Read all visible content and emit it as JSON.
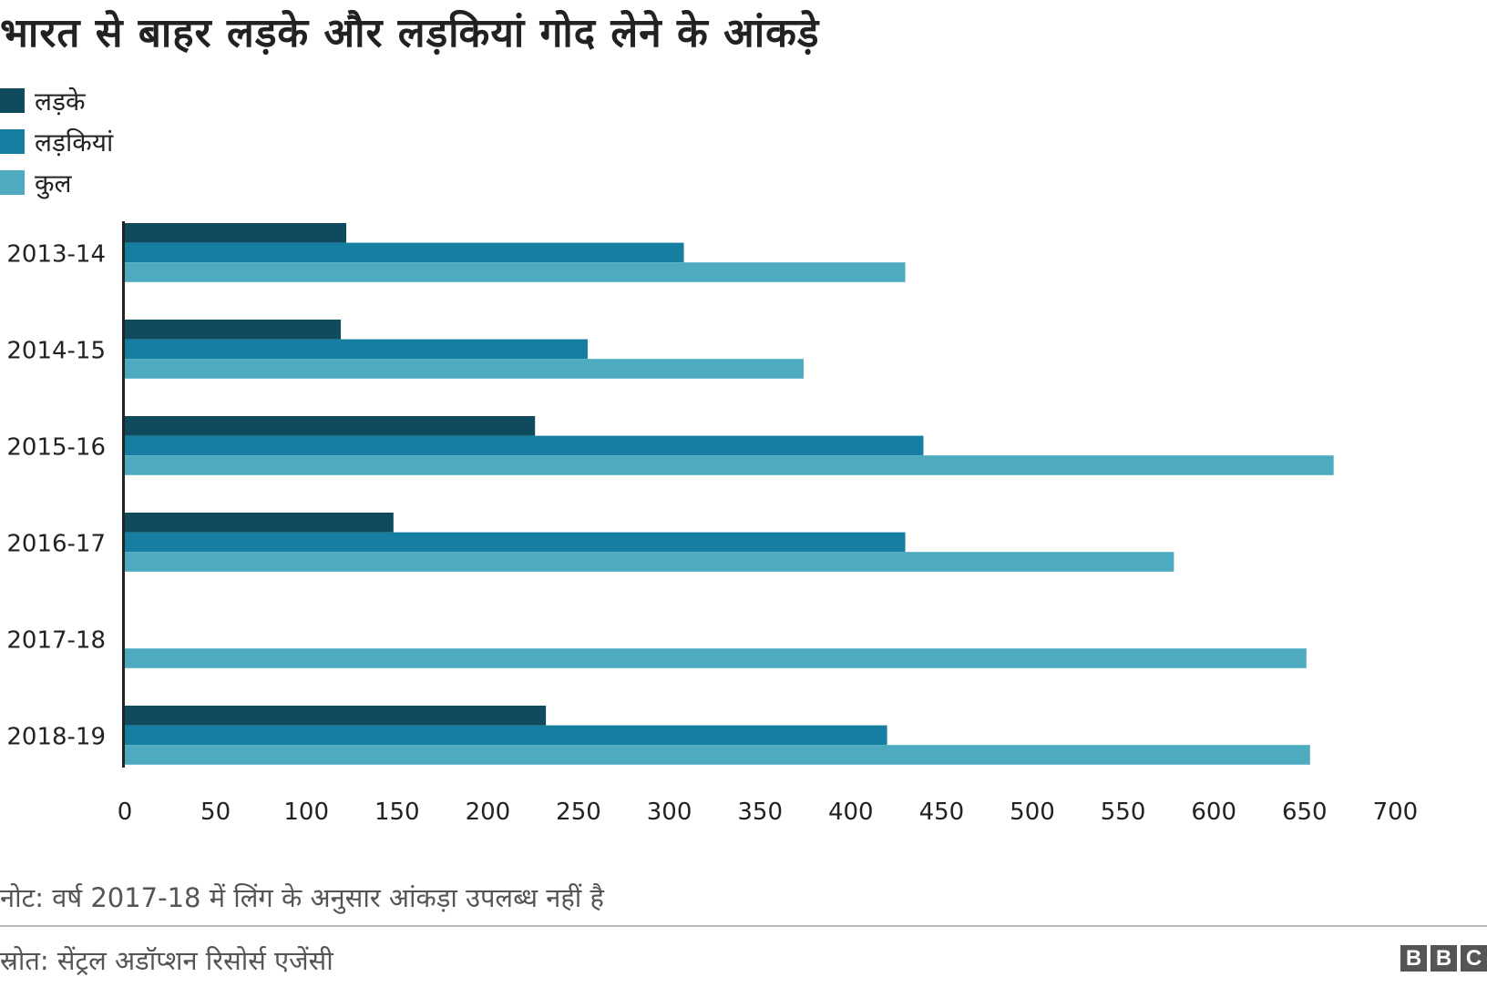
{
  "title": "भारत से बाहर लड़के और लड़कियां गोद लेने के आंकड़े",
  "note": "नोट: वर्ष 2017-18 में लिंग के अनुसार आंकड़ा उपलब्ध नहीं है",
  "source": "स्रोत: सेंट्रल अडॉप्शन रिसोर्स एजेंसी",
  "logo": [
    "B",
    "B",
    "C"
  ],
  "chart_data": {
    "type": "bar",
    "orientation": "horizontal",
    "title": "भारत से बाहर लड़के और लड़कियां गोद लेने के आंकड़े",
    "xlabel": "",
    "ylabel": "",
    "categories": [
      "2013-14",
      "2014-15",
      "2015-16",
      "2016-17",
      "2017-18",
      "2018-19"
    ],
    "series": [
      {
        "name": "लड़के",
        "color": "#0f4a5e",
        "values": [
          122,
          119,
          226,
          148,
          null,
          232
        ]
      },
      {
        "name": "लड़कियां",
        "color": "#167fa1",
        "values": [
          308,
          255,
          440,
          430,
          null,
          420
        ]
      },
      {
        "name": "कुल",
        "color": "#4eaabe",
        "values": [
          430,
          374,
          666,
          578,
          651,
          653
        ]
      }
    ],
    "xlim": [
      0,
      700
    ],
    "xticks": [
      0,
      50,
      100,
      150,
      200,
      250,
      300,
      350,
      400,
      450,
      500,
      550,
      600,
      650,
      700
    ],
    "grid": false,
    "legend_position": "top-left"
  }
}
